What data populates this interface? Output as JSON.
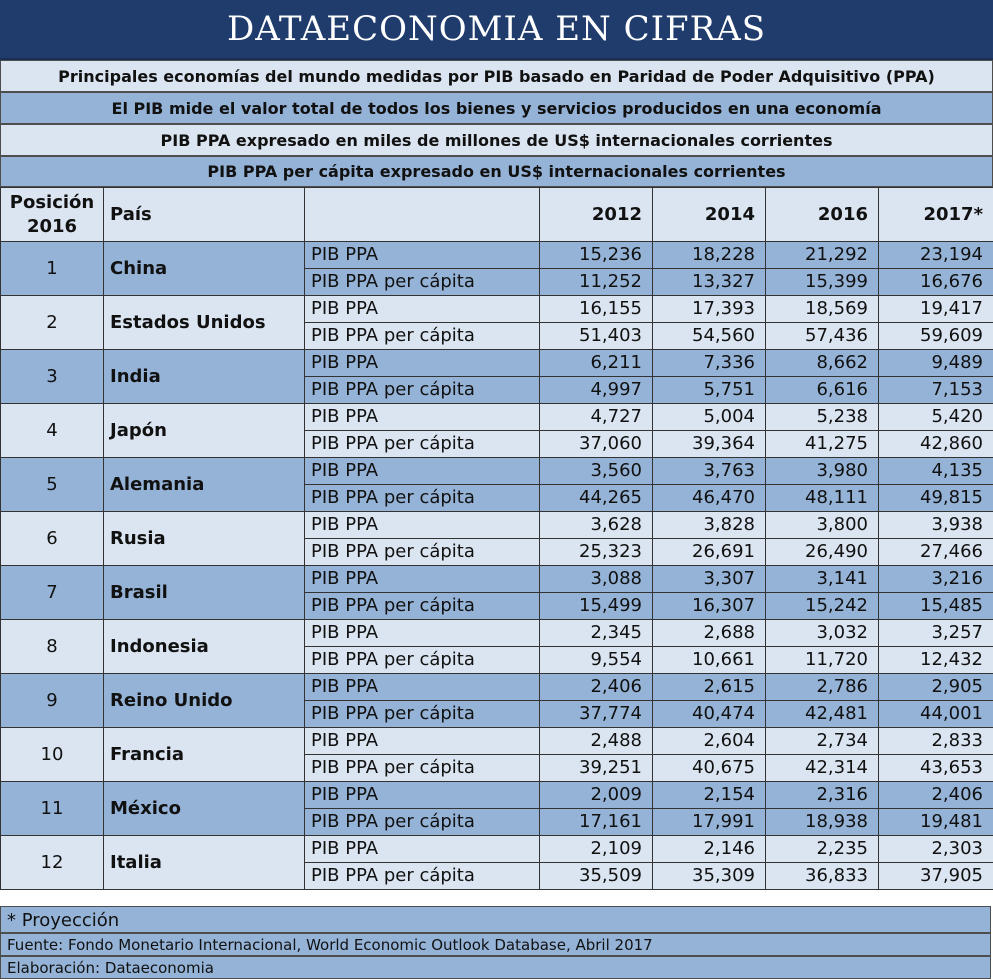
{
  "title": "DATAECONOMIA EN CIFRAS",
  "subtitles": [
    "Principales economías del mundo medidas por PIB basado en Paridad de Poder Adquisitivo (PPA)",
    "El PIB mide el valor total de todos los bienes y servicios producidos en una economía",
    "PIB PPA expresado en miles de millones de US$ internacionales corrientes",
    "PIB PPA per cápita expresado en US$ internacionales corrientes"
  ],
  "header": {
    "position_line1": "Posición",
    "position_line2": "2016",
    "country": "País",
    "years": [
      "2012",
      "2014",
      "2016",
      "2017*"
    ]
  },
  "metric_labels": {
    "gdp": "PIB PPA",
    "per_capita": "PIB PPA per cápita"
  },
  "rows": [
    {
      "pos": "1",
      "country": "China",
      "gdp": [
        "15,236",
        "18,228",
        "21,292",
        "23,194"
      ],
      "pc": [
        "11,252",
        "13,327",
        "15,399",
        "16,676"
      ]
    },
    {
      "pos": "2",
      "country": "Estados Unidos",
      "gdp": [
        "16,155",
        "17,393",
        "18,569",
        "19,417"
      ],
      "pc": [
        "51,403",
        "54,560",
        "57,436",
        "59,609"
      ]
    },
    {
      "pos": "3",
      "country": "India",
      "gdp": [
        "6,211",
        "7,336",
        "8,662",
        "9,489"
      ],
      "pc": [
        "4,997",
        "5,751",
        "6,616",
        "7,153"
      ]
    },
    {
      "pos": "4",
      "country": "Japón",
      "gdp": [
        "4,727",
        "5,004",
        "5,238",
        "5,420"
      ],
      "pc": [
        "37,060",
        "39,364",
        "41,275",
        "42,860"
      ]
    },
    {
      "pos": "5",
      "country": "Alemania",
      "gdp": [
        "3,560",
        "3,763",
        "3,980",
        "4,135"
      ],
      "pc": [
        "44,265",
        "46,470",
        "48,111",
        "49,815"
      ]
    },
    {
      "pos": "6",
      "country": "Rusia",
      "gdp": [
        "3,628",
        "3,828",
        "3,800",
        "3,938"
      ],
      "pc": [
        "25,323",
        "26,691",
        "26,490",
        "27,466"
      ]
    },
    {
      "pos": "7",
      "country": "Brasil",
      "gdp": [
        "3,088",
        "3,307",
        "3,141",
        "3,216"
      ],
      "pc": [
        "15,499",
        "16,307",
        "15,242",
        "15,485"
      ]
    },
    {
      "pos": "8",
      "country": "Indonesia",
      "gdp": [
        "2,345",
        "2,688",
        "3,032",
        "3,257"
      ],
      "pc": [
        "9,554",
        "10,661",
        "11,720",
        "12,432"
      ]
    },
    {
      "pos": "9",
      "country": "Reino Unido",
      "gdp": [
        "2,406",
        "2,615",
        "2,786",
        "2,905"
      ],
      "pc": [
        "37,774",
        "40,474",
        "42,481",
        "44,001"
      ]
    },
    {
      "pos": "10",
      "country": "Francia",
      "gdp": [
        "2,488",
        "2,604",
        "2,734",
        "2,833"
      ],
      "pc": [
        "39,251",
        "40,675",
        "42,314",
        "43,653"
      ]
    },
    {
      "pos": "11",
      "country": "México",
      "gdp": [
        "2,009",
        "2,154",
        "2,316",
        "2,406"
      ],
      "pc": [
        "17,161",
        "17,991",
        "18,938",
        "19,481"
      ]
    },
    {
      "pos": "12",
      "country": "Italia",
      "gdp": [
        "2,109",
        "2,146",
        "2,235",
        "2,303"
      ],
      "pc": [
        "35,509",
        "35,309",
        "36,833",
        "37,905"
      ]
    }
  ],
  "footnote": "* Proyección",
  "source": "Fuente: Fondo Monetario Internacional, World Economic Outlook Database, Abril 2017",
  "credit": "Elaboración: Dataeconomia",
  "colors": {
    "title_bg": "#1f3c6d",
    "dark_row": "#95b3d7",
    "light_row": "#dbe5f1"
  }
}
